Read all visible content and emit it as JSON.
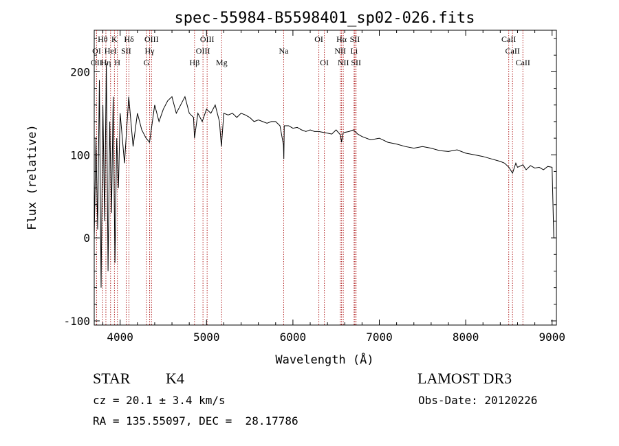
{
  "chart_data": {
    "type": "line",
    "title": "spec-55984-B5598401_sp02-026.fits",
    "xlabel": "Wavelength (Å)",
    "ylabel": "Flux (relative)",
    "xlim": [
      3700,
      9050
    ],
    "ylim": [
      -105,
      250
    ],
    "xticks": [
      4000,
      5000,
      6000,
      7000,
      8000,
      9000
    ],
    "yticks": [
      -100,
      0,
      100,
      200
    ],
    "grid": false,
    "series": [
      {
        "name": "flux",
        "x": [
          3700,
          3720,
          3740,
          3760,
          3780,
          3800,
          3820,
          3840,
          3860,
          3880,
          3900,
          3920,
          3940,
          3960,
          3980,
          4000,
          4050,
          4100,
          4150,
          4200,
          4250,
          4300,
          4340,
          4400,
          4450,
          4500,
          4550,
          4600,
          4650,
          4700,
          4750,
          4800,
          4850,
          4861,
          4900,
          4950,
          5000,
          5050,
          5100,
          5150,
          5172,
          5200,
          5250,
          5300,
          5350,
          5400,
          5450,
          5500,
          5550,
          5600,
          5650,
          5700,
          5750,
          5800,
          5850,
          5890,
          5895,
          5900,
          5950,
          6000,
          6050,
          6100,
          6150,
          6200,
          6250,
          6300,
          6350,
          6400,
          6450,
          6500,
          6550,
          6563,
          6580,
          6600,
          6650,
          6700,
          6750,
          6800,
          6900,
          7000,
          7100,
          7200,
          7300,
          7400,
          7500,
          7600,
          7700,
          7800,
          7900,
          8000,
          8100,
          8200,
          8300,
          8400,
          8450,
          8500,
          8542,
          8580,
          8600,
          8662,
          8700,
          8750,
          8800,
          8850,
          8900,
          8950,
          9000,
          9020,
          9040
        ],
        "y": [
          0,
          120,
          10,
          190,
          -60,
          160,
          20,
          210,
          -40,
          140,
          30,
          170,
          -30,
          120,
          60,
          150,
          90,
          170,
          110,
          150,
          130,
          120,
          115,
          160,
          140,
          155,
          165,
          170,
          150,
          160,
          170,
          150,
          145,
          120,
          150,
          140,
          155,
          150,
          160,
          140,
          110,
          150,
          148,
          150,
          145,
          150,
          148,
          145,
          140,
          142,
          140,
          138,
          140,
          140,
          135,
          112,
          95,
          135,
          135,
          132,
          133,
          130,
          128,
          130,
          128,
          128,
          127,
          126,
          125,
          130,
          124,
          115,
          126,
          127,
          128,
          130,
          125,
          122,
          118,
          120,
          115,
          113,
          110,
          108,
          110,
          108,
          105,
          104,
          106,
          102,
          100,
          98,
          95,
          92,
          90,
          85,
          78,
          90,
          85,
          88,
          82,
          87,
          84,
          85,
          82,
          86,
          85,
          0,
          0
        ]
      }
    ],
    "annotations": [
      {
        "label": "Hθ",
        "x": 3798,
        "row": 1
      },
      {
        "label": "K",
        "x": 3934,
        "row": 1
      },
      {
        "label": "Hδ",
        "x": 4102,
        "row": 1
      },
      {
        "label": "OIII",
        "x": 4363,
        "row": 1
      },
      {
        "label": "OIII",
        "x": 5007,
        "row": 1
      },
      {
        "label": "OI",
        "x": 6300,
        "row": 1
      },
      {
        "label": "Hα",
        "x": 6563,
        "row": 1
      },
      {
        "label": "SII",
        "x": 6717,
        "row": 1
      },
      {
        "label": "CaII",
        "x": 8498,
        "row": 1
      },
      {
        "label": "OI",
        "x": 3728,
        "row": 2
      },
      {
        "label": "HeI",
        "x": 3889,
        "row": 2
      },
      {
        "label": "SII",
        "x": 4070,
        "row": 2
      },
      {
        "label": "Hγ",
        "x": 4341,
        "row": 2
      },
      {
        "label": "OIII",
        "x": 4959,
        "row": 2
      },
      {
        "label": "Na",
        "x": 5893,
        "row": 2
      },
      {
        "label": "NII",
        "x": 6548,
        "row": 2
      },
      {
        "label": "Li",
        "x": 6708,
        "row": 2
      },
      {
        "label": "CaII",
        "x": 8542,
        "row": 2
      },
      {
        "label": "OII",
        "x": 3727,
        "row": 3
      },
      {
        "label": "Hη",
        "x": 3835,
        "row": 3
      },
      {
        "label": "H",
        "x": 3968,
        "row": 3
      },
      {
        "label": "G",
        "x": 4305,
        "row": 3
      },
      {
        "label": "Hβ",
        "x": 4861,
        "row": 3
      },
      {
        "label": "Mg",
        "x": 5175,
        "row": 3
      },
      {
        "label": "OI",
        "x": 6364,
        "row": 3
      },
      {
        "label": "NII",
        "x": 6583,
        "row": 3
      },
      {
        "label": "SII",
        "x": 6731,
        "row": 3
      },
      {
        "label": "CaII",
        "x": 8662,
        "row": 3
      }
    ]
  },
  "info": {
    "class_label": "STAR",
    "subclass": "K4",
    "survey": "LAMOST DR3",
    "cz": "cz = 20.1 ± 3.4 km/s",
    "obs_date": "Obs-Date: 20120226",
    "coords": "RA = 135.55097, DEC =  28.17786"
  },
  "colors": {
    "line": "#000000",
    "marker": "#b22222",
    "axis": "#000000"
  }
}
